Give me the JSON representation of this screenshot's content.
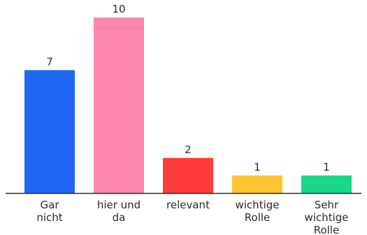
{
  "chart_data": {
    "type": "bar",
    "categories": [
      "Gar nicht",
      "hier und da",
      "relevant",
      "wichtige Rolle",
      "Sehr wichtige Rolle"
    ],
    "category_label_lines": [
      [
        "Gar",
        "nicht"
      ],
      [
        "hier und",
        "da"
      ],
      [
        "relevant"
      ],
      [
        "wichtige",
        "Rolle"
      ],
      [
        "Sehr",
        "wichtige",
        "Rolle"
      ]
    ],
    "values": [
      7,
      10,
      2,
      1,
      1
    ],
    "data_labels": [
      "7",
      "10",
      "2",
      "1",
      "1"
    ],
    "colors": [
      "#1f66f5",
      "#ff86ad",
      "#ff3b3b",
      "#ffc433",
      "#19d68a"
    ],
    "axis_color": "#2b2b2b",
    "ylim": [
      0,
      10
    ],
    "grid": false,
    "legend": "none"
  }
}
